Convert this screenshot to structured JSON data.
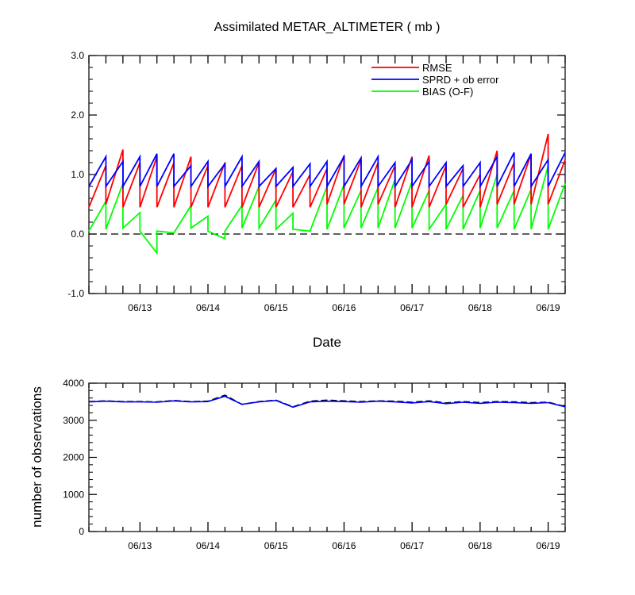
{
  "title": "Assimilated METAR_ALTIMETER ( mb )",
  "colors": {
    "rmse": "#ff0000",
    "sprd": "#0000ff",
    "bias": "#00ff00",
    "axis": "#000000"
  },
  "chart_data": [
    {
      "type": "line",
      "title": "Assimilated METAR_ALTIMETER ( mb )",
      "xlabel": "Date",
      "ylabel": "",
      "ylim": [
        -1.0,
        3.0
      ],
      "yticks": [
        "-1.0",
        "0.0",
        "1.0",
        "2.0",
        "3.0"
      ],
      "xlim": [
        0,
        42
      ],
      "x_tick_labels": [
        "06/13",
        "06/14",
        "06/15",
        "06/16",
        "06/17",
        "06/18",
        "06/19"
      ],
      "legend_position": "top-right",
      "zero_line": "dashed",
      "series": [
        {
          "name": "RMSE",
          "color": "#ff0000",
          "points": [
            [
              0.0,
              0.45
            ],
            [
              1.5,
              1.15
            ],
            [
              1.5,
              0.5
            ],
            [
              3.0,
              1.42
            ],
            [
              3.0,
              0.45
            ],
            [
              4.5,
              1.2
            ],
            [
              4.5,
              0.45
            ],
            [
              6.0,
              1.3
            ],
            [
              6.0,
              0.45
            ],
            [
              7.5,
              1.2
            ],
            [
              7.5,
              0.45
            ],
            [
              9.0,
              1.3
            ],
            [
              9.0,
              0.45
            ],
            [
              10.5,
              1.15
            ],
            [
              10.5,
              0.45
            ],
            [
              12.0,
              1.2
            ],
            [
              12.0,
              0.45
            ],
            [
              13.5,
              1.15
            ],
            [
              13.5,
              0.45
            ],
            [
              15.0,
              1.2
            ],
            [
              15.0,
              0.45
            ],
            [
              16.5,
              1.1
            ],
            [
              16.5,
              0.45
            ],
            [
              18.0,
              1.05
            ],
            [
              18.0,
              0.45
            ],
            [
              19.5,
              1.0
            ],
            [
              19.5,
              0.45
            ],
            [
              21.0,
              1.1
            ],
            [
              21.0,
              0.5
            ],
            [
              22.5,
              1.32
            ],
            [
              22.5,
              0.5
            ],
            [
              24.0,
              1.25
            ],
            [
              24.0,
              0.45
            ],
            [
              25.5,
              1.2
            ],
            [
              25.5,
              0.5
            ],
            [
              27.0,
              1.15
            ],
            [
              27.0,
              0.45
            ],
            [
              28.5,
              1.3
            ],
            [
              28.5,
              0.45
            ],
            [
              30.0,
              1.32
            ],
            [
              30.0,
              0.45
            ],
            [
              31.5,
              1.15
            ],
            [
              31.5,
              0.5
            ],
            [
              33.0,
              1.1
            ],
            [
              33.0,
              0.45
            ],
            [
              34.5,
              1.0
            ],
            [
              34.5,
              0.45
            ],
            [
              36.0,
              1.4
            ],
            [
              36.0,
              0.5
            ],
            [
              37.5,
              1.2
            ],
            [
              37.5,
              0.5
            ],
            [
              39.0,
              1.35
            ],
            [
              39.0,
              0.5
            ],
            [
              40.5,
              1.68
            ],
            [
              40.5,
              0.5
            ],
            [
              42.0,
              1.25
            ]
          ]
        },
        {
          "name": "SPRD + ob error",
          "color": "#0000ff",
          "points": [
            [
              0.0,
              0.8
            ],
            [
              1.5,
              1.3
            ],
            [
              1.5,
              0.8
            ],
            [
              3.0,
              1.22
            ],
            [
              3.0,
              0.8
            ],
            [
              4.5,
              1.3
            ],
            [
              4.5,
              0.8
            ],
            [
              6.0,
              1.35
            ],
            [
              6.0,
              0.8
            ],
            [
              7.5,
              1.35
            ],
            [
              7.5,
              0.8
            ],
            [
              9.0,
              1.15
            ],
            [
              9.0,
              0.8
            ],
            [
              10.5,
              1.22
            ],
            [
              10.5,
              0.8
            ],
            [
              12.0,
              1.18
            ],
            [
              12.0,
              0.8
            ],
            [
              13.5,
              1.3
            ],
            [
              13.5,
              0.8
            ],
            [
              15.0,
              1.22
            ],
            [
              15.0,
              0.8
            ],
            [
              16.5,
              1.1
            ],
            [
              16.5,
              0.8
            ],
            [
              18.0,
              1.12
            ],
            [
              18.0,
              0.8
            ],
            [
              19.5,
              1.18
            ],
            [
              19.5,
              0.8
            ],
            [
              21.0,
              1.22
            ],
            [
              21.0,
              0.8
            ],
            [
              22.5,
              1.3
            ],
            [
              22.5,
              0.8
            ],
            [
              24.0,
              1.28
            ],
            [
              24.0,
              0.8
            ],
            [
              25.5,
              1.3
            ],
            [
              25.5,
              0.8
            ],
            [
              27.0,
              1.2
            ],
            [
              27.0,
              0.8
            ],
            [
              28.5,
              1.25
            ],
            [
              28.5,
              0.8
            ],
            [
              30.0,
              1.22
            ],
            [
              30.0,
              0.8
            ],
            [
              31.5,
              1.2
            ],
            [
              31.5,
              0.8
            ],
            [
              33.0,
              1.15
            ],
            [
              33.0,
              0.8
            ],
            [
              34.5,
              1.2
            ],
            [
              34.5,
              0.8
            ],
            [
              36.0,
              1.3
            ],
            [
              36.0,
              0.8
            ],
            [
              37.5,
              1.37
            ],
            [
              37.5,
              0.8
            ],
            [
              39.0,
              1.35
            ],
            [
              39.0,
              0.8
            ],
            [
              40.5,
              1.25
            ],
            [
              40.5,
              0.8
            ],
            [
              42.0,
              1.37
            ]
          ]
        },
        {
          "name": "BIAS (O-F)",
          "color": "#00ff00",
          "points": [
            [
              0.0,
              0.05
            ],
            [
              1.5,
              0.55
            ],
            [
              1.5,
              0.08
            ],
            [
              3.0,
              0.85
            ],
            [
              3.0,
              0.1
            ],
            [
              4.5,
              0.36
            ],
            [
              4.5,
              0.05
            ],
            [
              6.0,
              -0.32
            ],
            [
              6.0,
              0.05
            ],
            [
              7.5,
              0.02
            ],
            [
              7.5,
              0.02
            ],
            [
              9.0,
              0.48
            ],
            [
              9.0,
              0.1
            ],
            [
              10.5,
              0.3
            ],
            [
              10.5,
              0.05
            ],
            [
              12.0,
              -0.08
            ],
            [
              12.0,
              0.05
            ],
            [
              13.5,
              0.48
            ],
            [
              13.5,
              0.1
            ],
            [
              15.0,
              0.8
            ],
            [
              15.0,
              0.1
            ],
            [
              16.5,
              0.57
            ],
            [
              16.5,
              0.08
            ],
            [
              18.0,
              0.35
            ],
            [
              18.0,
              0.08
            ],
            [
              19.5,
              0.05
            ],
            [
              19.5,
              0.05
            ],
            [
              21.0,
              0.8
            ],
            [
              21.0,
              0.08
            ],
            [
              22.5,
              0.83
            ],
            [
              22.5,
              0.1
            ],
            [
              24.0,
              0.73
            ],
            [
              24.0,
              0.1
            ],
            [
              25.5,
              0.78
            ],
            [
              25.5,
              0.1
            ],
            [
              27.0,
              0.92
            ],
            [
              27.0,
              0.1
            ],
            [
              28.5,
              0.88
            ],
            [
              28.5,
              0.1
            ],
            [
              30.0,
              0.73
            ],
            [
              30.0,
              0.08
            ],
            [
              31.5,
              0.5
            ],
            [
              31.5,
              0.08
            ],
            [
              33.0,
              0.65
            ],
            [
              33.0,
              0.08
            ],
            [
              34.5,
              0.73
            ],
            [
              34.5,
              0.1
            ],
            [
              36.0,
              1.0
            ],
            [
              36.0,
              0.1
            ],
            [
              37.5,
              0.73
            ],
            [
              37.5,
              0.08
            ],
            [
              39.0,
              0.75
            ],
            [
              39.0,
              0.08
            ],
            [
              40.5,
              1.15
            ],
            [
              40.5,
              0.08
            ],
            [
              42.0,
              0.85
            ]
          ]
        }
      ]
    },
    {
      "type": "line",
      "title": "",
      "xlabel": "",
      "ylabel": "number of observations",
      "ylim": [
        0,
        4200
      ],
      "yticks": [
        "0",
        "1000",
        "2000",
        "3000",
        "4000"
      ],
      "xlim": [
        0,
        42
      ],
      "x_tick_labels": [
        "06/13",
        "06/14",
        "06/15",
        "06/16",
        "06/17",
        "06/18",
        "06/19"
      ],
      "series": [
        {
          "color": "#000000",
          "dash": "dashed",
          "points": [
            [
              0,
              3680
            ],
            [
              1.5,
              3700
            ],
            [
              3,
              3680
            ],
            [
              4.5,
              3680
            ],
            [
              6,
              3670
            ],
            [
              7.5,
              3710
            ],
            [
              9,
              3680
            ],
            [
              10.5,
              3690
            ],
            [
              12,
              3860
            ],
            [
              13.5,
              3600
            ],
            [
              15,
              3680
            ],
            [
              16.5,
              3720
            ],
            [
              18,
              3530
            ],
            [
              19.5,
              3690
            ],
            [
              21,
              3720
            ],
            [
              22.5,
              3700
            ],
            [
              24,
              3680
            ],
            [
              25.5,
              3700
            ],
            [
              27,
              3690
            ],
            [
              28.5,
              3660
            ],
            [
              30,
              3700
            ],
            [
              31.5,
              3640
            ],
            [
              33,
              3680
            ],
            [
              34.5,
              3650
            ],
            [
              36,
              3680
            ],
            [
              37.5,
              3670
            ],
            [
              39,
              3650
            ],
            [
              40.5,
              3660
            ],
            [
              42,
              3540
            ]
          ]
        },
        {
          "color": "#0000ff",
          "dash": "solid",
          "points": [
            [
              0,
              3670
            ],
            [
              1.5,
              3690
            ],
            [
              3,
              3670
            ],
            [
              4.5,
              3670
            ],
            [
              6,
              3660
            ],
            [
              7.5,
              3700
            ],
            [
              9,
              3670
            ],
            [
              10.5,
              3680
            ],
            [
              12,
              3830
            ],
            [
              13.5,
              3600
            ],
            [
              15,
              3670
            ],
            [
              16.5,
              3710
            ],
            [
              18,
              3520
            ],
            [
              19.5,
              3670
            ],
            [
              21,
              3690
            ],
            [
              22.5,
              3680
            ],
            [
              24,
              3660
            ],
            [
              25.5,
              3690
            ],
            [
              27,
              3670
            ],
            [
              28.5,
              3640
            ],
            [
              30,
              3680
            ],
            [
              31.5,
              3620
            ],
            [
              33,
              3660
            ],
            [
              34.5,
              3630
            ],
            [
              36,
              3660
            ],
            [
              37.5,
              3650
            ],
            [
              39,
              3630
            ],
            [
              40.5,
              3650
            ],
            [
              42,
              3530
            ]
          ]
        }
      ]
    }
  ]
}
